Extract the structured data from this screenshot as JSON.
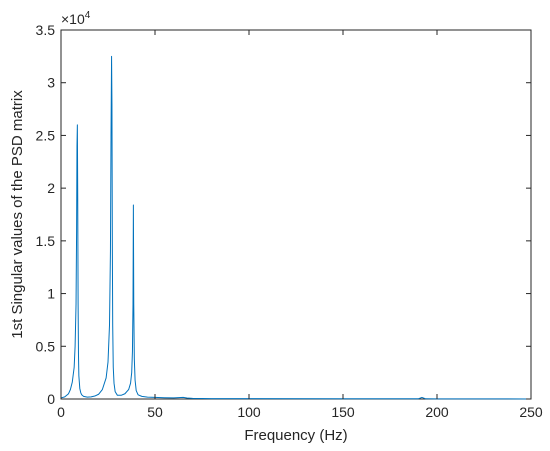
{
  "chart_data": {
    "type": "line",
    "title": "",
    "xlabel": "Frequency (Hz)",
    "ylabel": "1st Singular values of the PSD matrix",
    "xlim": [
      0,
      250
    ],
    "ylim": [
      0,
      35000
    ],
    "x_ticks": [
      0,
      50,
      100,
      150,
      200,
      250
    ],
    "x_tick_labels": [
      "0",
      "50",
      "100",
      "150",
      "200",
      "250"
    ],
    "y_ticks": [
      0,
      5000,
      10000,
      15000,
      20000,
      25000,
      30000,
      35000
    ],
    "y_tick_labels": [
      "0",
      "0.5",
      "1",
      "1.5",
      "2",
      "2.5",
      "3",
      "3.5"
    ],
    "y_exponent_base": "×10",
    "y_exponent_power": "4",
    "grid": false,
    "legend": "none",
    "line_color": "#0072BD",
    "series": [
      {
        "x": [
          0,
          2,
          4,
          5,
          6,
          7,
          7.5,
          8,
          8.3,
          8.5,
          8.7,
          8.9,
          9.1,
          9.3,
          9.5,
          10,
          10.5,
          11,
          12,
          14,
          16,
          18,
          20,
          22,
          24,
          25,
          25.8,
          26.3,
          26.6,
          26.9,
          27.1,
          27.3,
          27.5,
          27.8,
          28.2,
          28.8,
          30,
          32,
          34,
          36,
          37,
          37.6,
          38,
          38.3,
          38.5,
          38.7,
          39,
          39.4,
          40,
          41,
          43,
          46,
          50,
          55,
          60,
          65,
          67,
          70,
          80,
          100,
          150,
          190,
          192,
          194,
          200,
          250
        ],
        "y": [
          100,
          200,
          500,
          900,
          1600,
          3000,
          5000,
          9000,
          16000,
          24000,
          26000,
          19000,
          9000,
          4200,
          2200,
          1000,
          600,
          400,
          250,
          180,
          200,
          280,
          450,
          900,
          2000,
          3500,
          7000,
          14000,
          25000,
          32500,
          28000,
          15000,
          7000,
          3000,
          1500,
          700,
          350,
          350,
          500,
          900,
          1500,
          2500,
          4500,
          9000,
          18400,
          9000,
          3800,
          1800,
          800,
          400,
          250,
          180,
          150,
          120,
          110,
          150,
          100,
          60,
          40,
          30,
          20,
          20,
          150,
          20,
          10,
          5
        ]
      }
    ]
  }
}
